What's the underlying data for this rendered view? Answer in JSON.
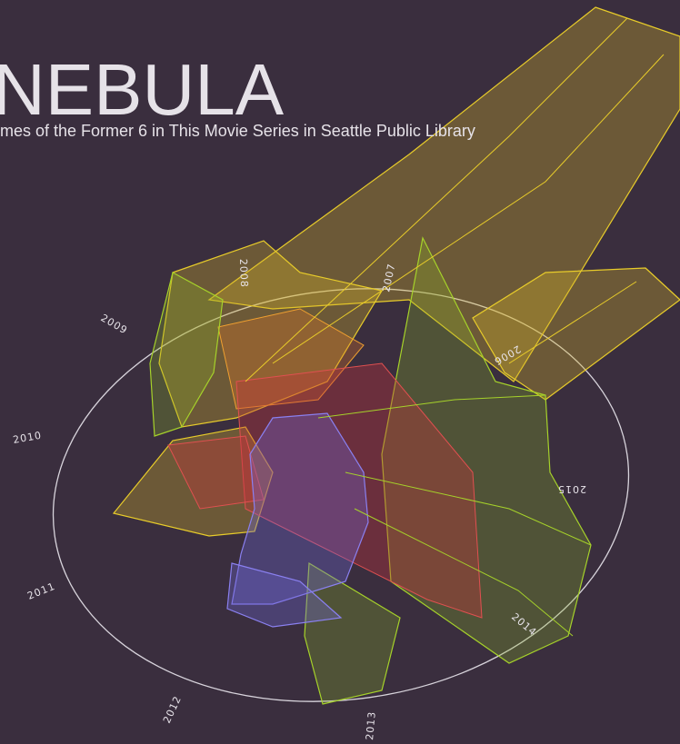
{
  "header": {
    "title": "NEBULA",
    "subtitle": "mes of the Former 6 in This Movie Series in Seattle Public Library"
  },
  "year_labels": [
    "2009",
    "2010",
    "2011",
    "2012",
    "2013",
    "2014",
    "2015",
    "2006",
    "2007",
    "2008"
  ]
}
